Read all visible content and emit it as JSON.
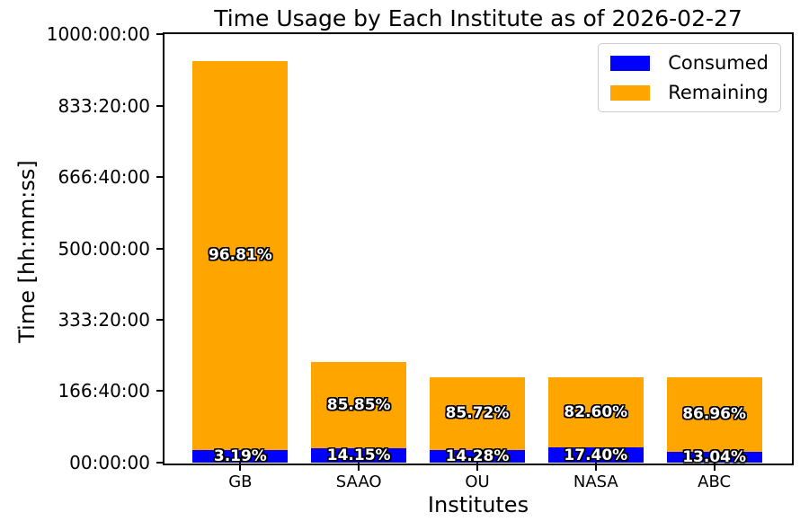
{
  "chart_data": {
    "type": "bar",
    "stacked": true,
    "title": "Time Usage by Each Institute as of 2026-02-27",
    "xlabel": "Institutes",
    "ylabel": "Time [hh:mm:ss]",
    "ylim": [
      0,
      1000
    ],
    "grid": false,
    "categories": [
      "GB",
      "SAAO",
      "OU",
      "NASA",
      "ABC"
    ],
    "yticks": [
      {
        "hours": 0,
        "label": "00:00:00"
      },
      {
        "hours": 166.6667,
        "label": "166:40:00"
      },
      {
        "hours": 333.3333,
        "label": "333:20:00"
      },
      {
        "hours": 500,
        "label": "500:00:00"
      },
      {
        "hours": 666.6667,
        "label": "666:40:00"
      },
      {
        "hours": 833.3333,
        "label": "833:20:00"
      },
      {
        "hours": 1000,
        "label": "1000:00:00"
      }
    ],
    "totals_hours_estimated": [
      937,
      235,
      200,
      200,
      200
    ],
    "series": [
      {
        "name": "Consumed",
        "color": "#0000ff",
        "values_hours": [
          29.9,
          33.3,
          28.6,
          34.8,
          26.1
        ],
        "percent_labels": [
          "3.19%",
          "14.15%",
          "14.28%",
          "17.40%",
          "13.04%"
        ]
      },
      {
        "name": "Remaining",
        "color": "#ffa500",
        "values_hours": [
          907.1,
          201.7,
          171.4,
          165.2,
          173.9
        ],
        "percent_labels": [
          "96.81%",
          "85.85%",
          "85.72%",
          "82.60%",
          "86.96%"
        ]
      }
    ],
    "legend": {
      "position": "upper right",
      "entries": [
        "Consumed",
        "Remaining"
      ],
      "border_color": "#cccccc"
    }
  }
}
